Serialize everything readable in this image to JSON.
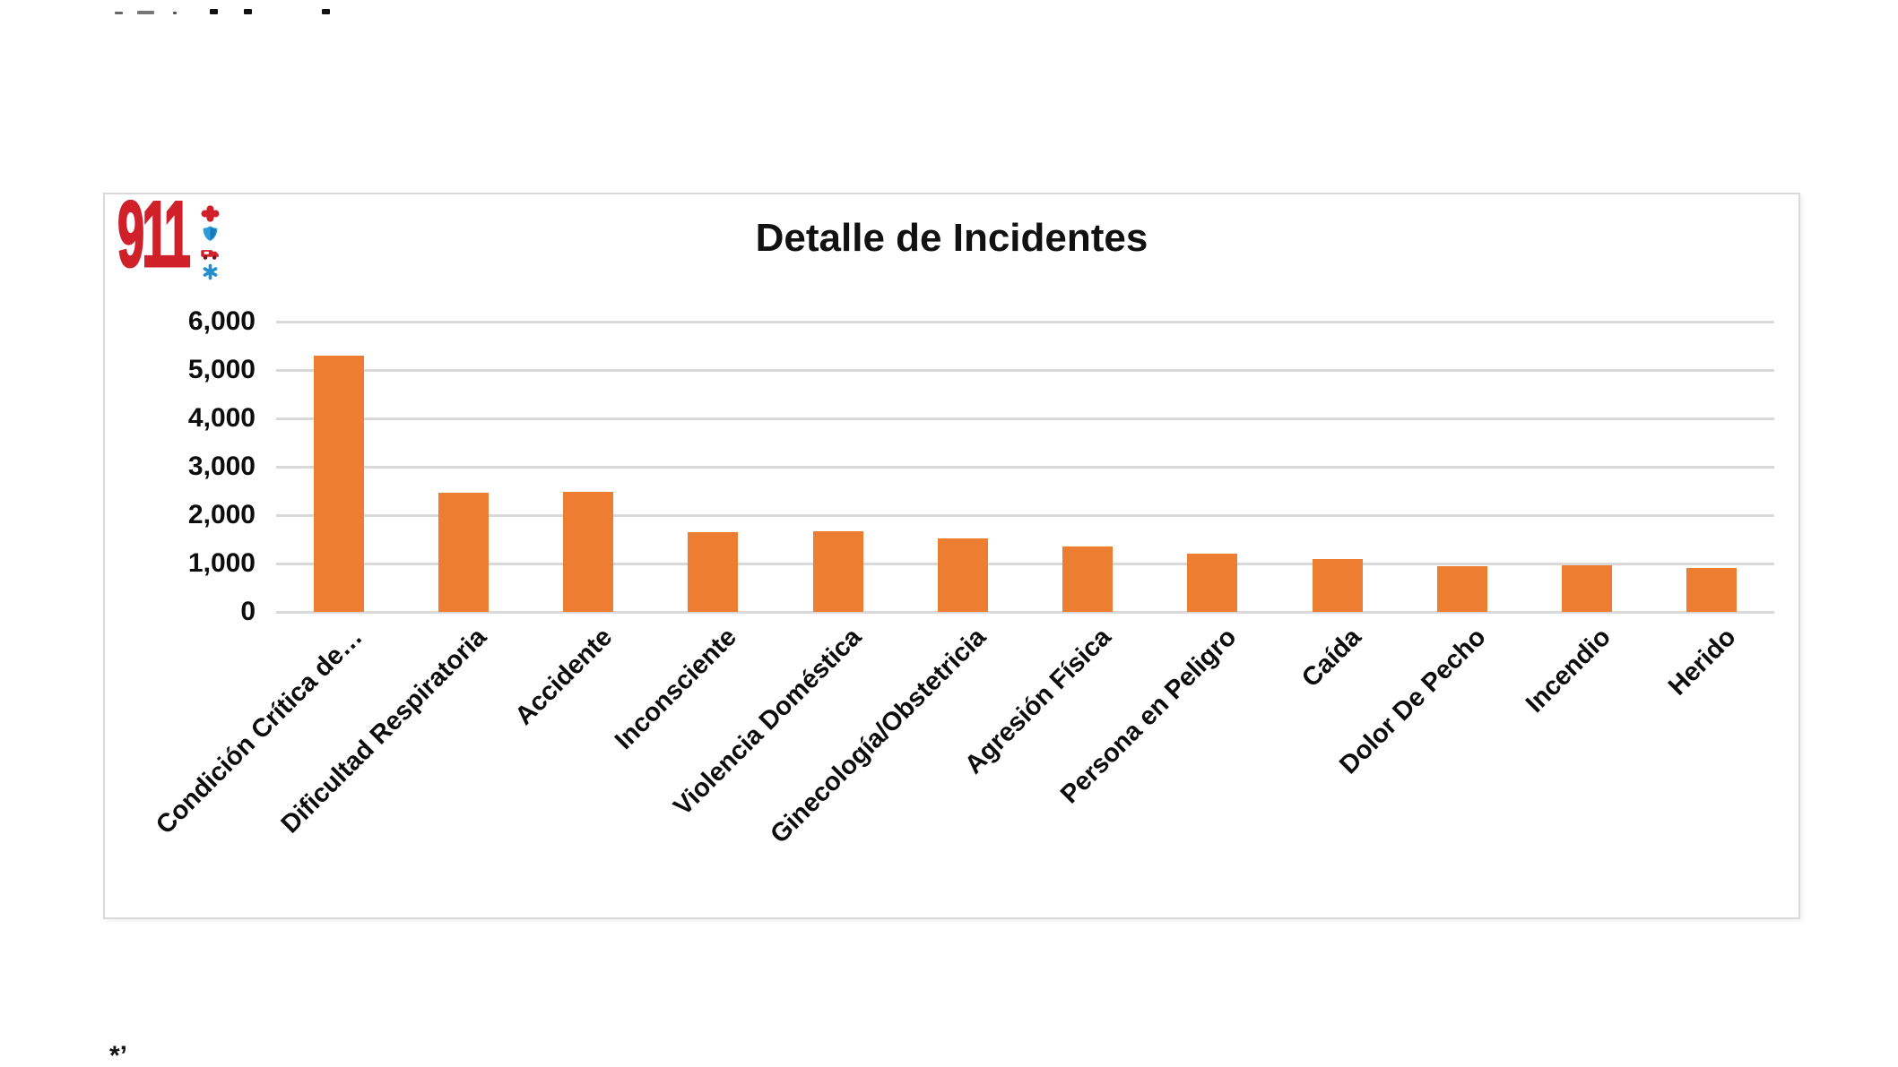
{
  "page": {
    "background": "#ffffff",
    "footnote_fragment": "*’"
  },
  "logo": {
    "number": "911",
    "red": "#d0202a",
    "blue": "#2b9cd8",
    "icons": [
      "medical-cross",
      "shield",
      "ambulance",
      "star-of-life"
    ]
  },
  "chart_data": {
    "type": "bar",
    "title": "Detalle de Incidentes",
    "categories": [
      "Condición Crítica de…",
      "Dificultad Respiratoria",
      "Accidente",
      "Inconsciente",
      "Violencia Doméstica",
      "Ginecología/Obstetricia",
      "Agresión Física",
      "Persona en Peligro",
      "Caída",
      "Dolor De Pecho",
      "Incendio",
      "Herido"
    ],
    "values": [
      5290,
      2460,
      2490,
      1650,
      1670,
      1510,
      1360,
      1210,
      1090,
      940,
      960,
      910
    ],
    "xlabel": "",
    "ylabel": "",
    "ylim": [
      0,
      6000
    ],
    "ytick_interval": 1000,
    "ytick_labels": [
      "0",
      "1,000",
      "2,000",
      "3,000",
      "4,000",
      "5,000",
      "6,000"
    ],
    "bar_color": "#ED7D31",
    "gridline_color": "#D9D9D9",
    "grid": true,
    "legend": "none",
    "x_label_rotation_deg": 45
  }
}
